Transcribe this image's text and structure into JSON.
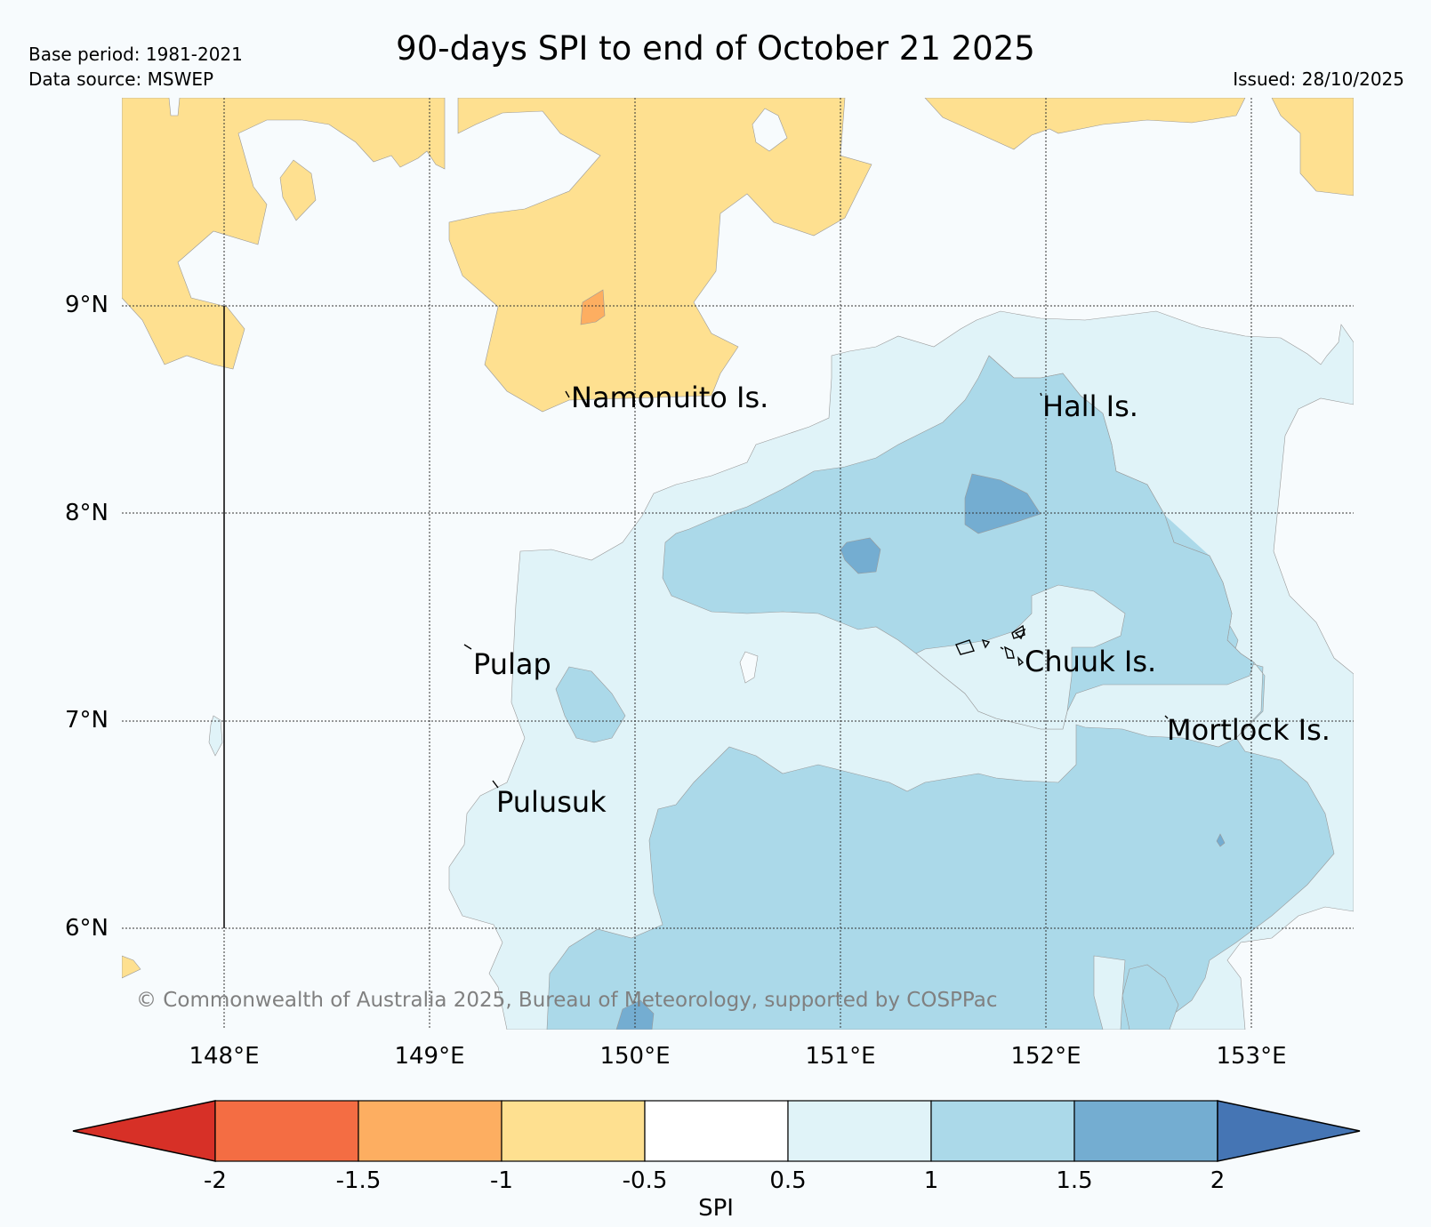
{
  "header": {
    "title": "90-days SPI to end of October 21 2025",
    "base_period": "Base period: 1981-2021",
    "data_source": "Data source: MSWEP",
    "issued": "Issued: 28/10/2025"
  },
  "map": {
    "lat_labels": [
      "9°N",
      "8°N",
      "7°N",
      "6°N"
    ],
    "lon_labels": [
      "148°E",
      "149°E",
      "150°E",
      "151°E",
      "152°E",
      "153°E"
    ],
    "places": {
      "namonuito": "Namonuito Is.",
      "hall": "Hall Is.",
      "pulap": "Pulap",
      "chuuk": "Chuuk Is.",
      "mortlock": "Mortlock Is.",
      "pulusuk": "Pulusuk"
    },
    "copyright": "© Commonwealth of Australia 2025, Bureau of Meteorology, supported by COSPPac"
  },
  "colorbar": {
    "title": "SPI",
    "ticks": [
      "-2",
      "-1.5",
      "-1",
      "-0.5",
      "0.5",
      "1",
      "1.5",
      "2"
    ],
    "colors": [
      "#d73027",
      "#f46d43",
      "#fdae61",
      "#fee090",
      "#ffffff",
      "#e0f3f8",
      "#abd9e9",
      "#74add1",
      "#4575b4"
    ]
  }
}
